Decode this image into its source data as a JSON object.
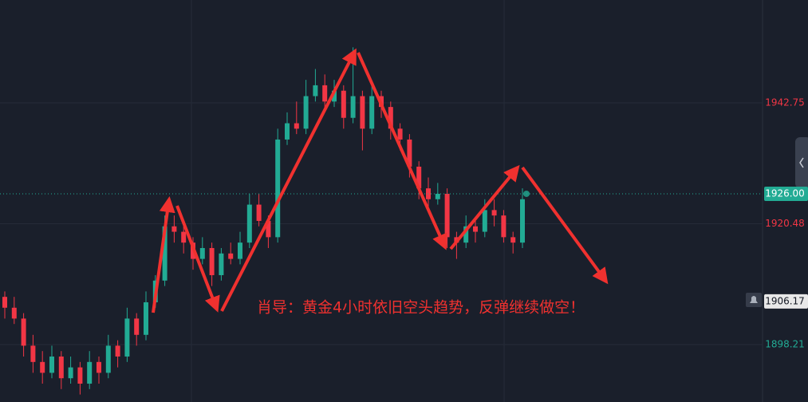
{
  "chart_data": {
    "type": "candlestick",
    "annotation": "肖导：黄金4小时依旧空头趋势，反弹继续做空！",
    "ohlc": [
      [
        1907,
        1908,
        1903,
        1905
      ],
      [
        1905,
        1907,
        1902,
        1903
      ],
      [
        1903,
        1904,
        1896,
        1898
      ],
      [
        1898,
        1900,
        1893,
        1895
      ],
      [
        1895,
        1897,
        1891,
        1893
      ],
      [
        1893,
        1898,
        1892,
        1896
      ],
      [
        1896,
        1897,
        1890,
        1892
      ],
      [
        1892,
        1896,
        1891,
        1894
      ],
      [
        1894,
        1895,
        1889,
        1891
      ],
      [
        1891,
        1897,
        1890,
        1895
      ],
      [
        1895,
        1896,
        1891,
        1893
      ],
      [
        1893,
        1900,
        1892,
        1898
      ],
      [
        1898,
        1899,
        1894,
        1896
      ],
      [
        1896,
        1905,
        1895,
        1903
      ],
      [
        1903,
        1904,
        1898,
        1900
      ],
      [
        1900,
        1908,
        1899,
        1906
      ],
      [
        1906,
        1911,
        1905,
        1910
      ],
      [
        1910,
        1922,
        1909,
        1920
      ],
      [
        1920,
        1922,
        1917,
        1919
      ],
      [
        1919,
        1921,
        1915,
        1917
      ],
      [
        1917,
        1918,
        1912,
        1914
      ],
      [
        1914,
        1918,
        1913,
        1916
      ],
      [
        1916,
        1917,
        1909,
        1911
      ],
      [
        1911,
        1916,
        1910,
        1915
      ],
      [
        1915,
        1917,
        1913,
        1914
      ],
      [
        1914,
        1919,
        1913,
        1917
      ],
      [
        1917,
        1926,
        1916,
        1924
      ],
      [
        1924,
        1926,
        1920,
        1921
      ],
      [
        1921,
        1922,
        1916,
        1918
      ],
      [
        1918,
        1938,
        1917,
        1936
      ],
      [
        1936,
        1941,
        1935,
        1939
      ],
      [
        1939,
        1943,
        1937,
        1938
      ],
      [
        1938,
        1947,
        1937,
        1944
      ],
      [
        1944,
        1949,
        1943,
        1946
      ],
      [
        1946,
        1948,
        1941,
        1943
      ],
      [
        1943,
        1947,
        1942,
        1945
      ],
      [
        1945,
        1946,
        1938,
        1940
      ],
      [
        1940,
        1953,
        1939,
        1944
      ],
      [
        1944,
        1945,
        1934,
        1938
      ],
      [
        1938,
        1946,
        1937,
        1944
      ],
      [
        1944,
        1945,
        1940,
        1942
      ],
      [
        1942,
        1943,
        1936,
        1938
      ],
      [
        1938,
        1939,
        1934,
        1936
      ],
      [
        1936,
        1937,
        1929,
        1931
      ],
      [
        1931,
        1932,
        1925,
        1927
      ],
      [
        1927,
        1929,
        1923,
        1925
      ],
      [
        1925,
        1928,
        1924,
        1926
      ],
      [
        1926,
        1927,
        1916,
        1918
      ],
      [
        1918,
        1919,
        1914,
        1917
      ],
      [
        1917,
        1922,
        1916,
        1920
      ],
      [
        1920,
        1921,
        1917,
        1919
      ],
      [
        1919,
        1925,
        1918,
        1923
      ],
      [
        1923,
        1925,
        1920,
        1922
      ],
      [
        1922,
        1923,
        1917,
        1918
      ],
      [
        1918,
        1919,
        1915,
        1917
      ],
      [
        1917,
        1927,
        1916,
        1925
      ]
    ],
    "up_color": "#22ab94",
    "down_color": "#f23645",
    "ylim": [
      1887.62,
      1961.72
    ],
    "yticks": [
      1942.75,
      1920.48,
      1898.21
    ],
    "ytick_colors": [
      "#f23645",
      "#f23645",
      "#22ab94"
    ],
    "grid": true,
    "current_price": {
      "value": 1926,
      "label": "1926.00"
    },
    "alert_price": 1906.17
  }
}
